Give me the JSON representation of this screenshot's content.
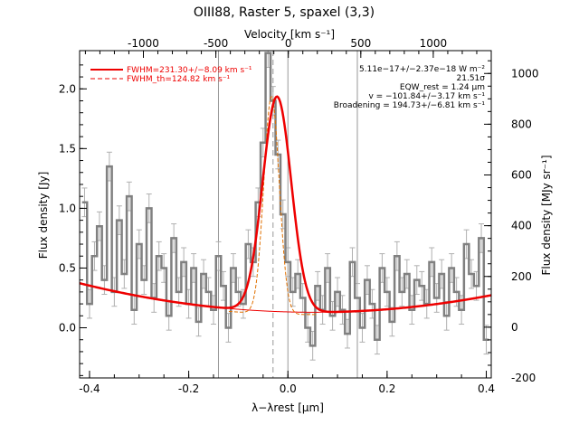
{
  "chart_data": {
    "type": "line",
    "title": "OIII88, Raster 5, spaxel (3,3)",
    "xlabel": "λ−λrest [μm]",
    "ylabel": "Flux density [Jy]",
    "top_xlabel": "Velocity [km s⁻¹]",
    "right_ylabel": "Flux density [MJy sr⁻¹]",
    "xlim": [
      -0.42,
      0.41
    ],
    "ylim": [
      -0.42,
      2.32
    ],
    "right_ylim": [
      -200,
      1090
    ],
    "top_xlim": [
      -1440,
      1400
    ],
    "x_ticks": [
      "-0.4",
      "-0.2",
      "0.0",
      "0.2",
      "0.4"
    ],
    "x_tick_values": [
      -0.4,
      -0.2,
      0.0,
      0.2,
      0.4
    ],
    "y_ticks": [
      "0.0",
      "0.5",
      "1.0",
      "1.5",
      "2.0"
    ],
    "y_tick_values": [
      0.0,
      0.5,
      1.0,
      1.5,
      2.0
    ],
    "right_ticks": [
      "-200",
      "0",
      "200",
      "400",
      "600",
      "800",
      "1000"
    ],
    "right_tick_values": [
      -200,
      0,
      200,
      400,
      600,
      800,
      1000
    ],
    "top_ticks": [
      "-1000",
      "-500",
      "0",
      "500",
      "1000"
    ],
    "top_tick_values": [
      -1000,
      -500,
      0,
      500,
      1000
    ],
    "vlines": [
      -0.14,
      0.0,
      0.14
    ],
    "center_dashed": -0.03,
    "legend": [
      {
        "label": "FWHM=231.30+/−8.09 km s⁻¹",
        "style": "solid",
        "color": "#ee0000"
      },
      {
        "label": "FWHM_th=124.82 km s⁻¹",
        "style": "dashed",
        "color": "#ee0000"
      }
    ],
    "annotations": [
      "5.11e−17+/−2.37e−18 W m⁻²",
      "21.51σ",
      "EQW_rest = 1.24 μm",
      "v = −101.84+/−3.17 km s⁻¹",
      "Broadening = 194.73+/−6.81 km s⁻¹"
    ],
    "fit": {
      "amplitude": 1.8,
      "center": -0.022,
      "sigma": 0.0287,
      "baseline_quad": 1.1,
      "baseline_center": 0.05,
      "baseline_const": 0.13
    },
    "thermal": {
      "amplitude": 1.82,
      "center": -0.033,
      "sigma": 0.0155
    },
    "x": [
      -0.41,
      -0.4,
      -0.39,
      -0.38,
      -0.37,
      -0.36,
      -0.35,
      -0.34,
      -0.33,
      -0.32,
      -0.31,
      -0.3,
      -0.29,
      -0.28,
      -0.27,
      -0.26,
      -0.25,
      -0.24,
      -0.23,
      -0.22,
      -0.21,
      -0.2,
      -0.19,
      -0.18,
      -0.17,
      -0.16,
      -0.15,
      -0.14,
      -0.13,
      -0.12,
      -0.11,
      -0.1,
      -0.09,
      -0.08,
      -0.07,
      -0.06,
      -0.05,
      -0.04,
      -0.03,
      -0.02,
      -0.01,
      0.0,
      0.01,
      0.02,
      0.03,
      0.04,
      0.05,
      0.06,
      0.07,
      0.08,
      0.09,
      0.1,
      0.11,
      0.12,
      0.13,
      0.14,
      0.15,
      0.16,
      0.17,
      0.18,
      0.19,
      0.2,
      0.21,
      0.22,
      0.23,
      0.24,
      0.25,
      0.26,
      0.27,
      0.28,
      0.29,
      0.3,
      0.31,
      0.32,
      0.33,
      0.34,
      0.35,
      0.36,
      0.37,
      0.38,
      0.39,
      0.4
    ],
    "y": [
      1.05,
      0.2,
      0.6,
      0.85,
      0.4,
      1.35,
      0.3,
      0.9,
      0.45,
      1.1,
      0.15,
      0.7,
      0.4,
      1.0,
      0.25,
      0.6,
      0.5,
      0.1,
      0.75,
      0.3,
      0.55,
      0.2,
      0.5,
      0.05,
      0.45,
      0.3,
      0.15,
      0.6,
      0.35,
      0.0,
      0.5,
      0.3,
      0.2,
      0.7,
      0.55,
      1.05,
      1.55,
      2.3,
      1.9,
      1.45,
      0.95,
      0.55,
      0.3,
      0.45,
      0.25,
      0.0,
      -0.15,
      0.35,
      0.15,
      0.5,
      0.1,
      0.3,
      0.15,
      -0.05,
      0.55,
      0.25,
      0.0,
      0.4,
      0.2,
      -0.1,
      0.5,
      0.3,
      0.05,
      0.6,
      0.3,
      0.45,
      0.15,
      0.4,
      0.35,
      0.2,
      0.55,
      0.25,
      0.45,
      0.1,
      0.5,
      0.3,
      0.15,
      0.7,
      0.45,
      0.35,
      0.75,
      -0.1
    ],
    "err": 0.12
  }
}
